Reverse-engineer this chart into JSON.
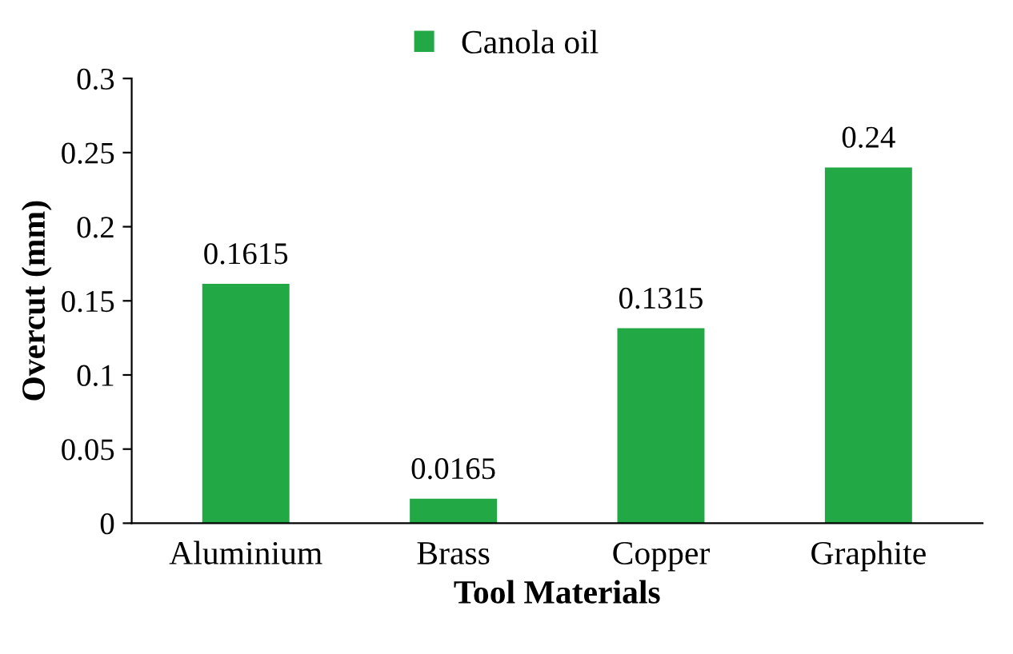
{
  "chart_data": {
    "type": "bar",
    "xlabel": "Tool Materials",
    "ylabel": "Overcut (mm)",
    "categories": [
      "Aluminium",
      "Brass",
      "Copper",
      "Graphite"
    ],
    "series": [
      {
        "name": "Canola oil",
        "color": "#22a845",
        "values": [
          0.1615,
          0.0165,
          0.1315,
          0.24
        ]
      }
    ],
    "ylim": [
      0,
      0.3
    ],
    "yticks": [
      0,
      {
        "value": 0.05,
        "label": "0.05"
      },
      {
        "value": 0.1,
        "label": "0.1"
      },
      {
        "value": 0.15,
        "label": "0.15"
      },
      {
        "value": 0.2,
        "label": "0.2"
      },
      {
        "value": 0.25,
        "label": "0.25"
      },
      {
        "value": 0.3,
        "label": "0.3"
      }
    ],
    "data_labels": true,
    "legend": "top",
    "grid": false
  }
}
